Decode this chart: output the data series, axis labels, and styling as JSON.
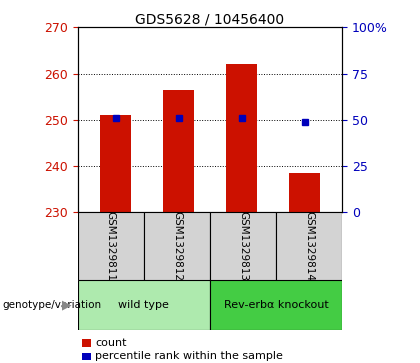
{
  "title": "GDS5628 / 10456400",
  "samples": [
    "GSM1329811",
    "GSM1329812",
    "GSM1329813",
    "GSM1329814"
  ],
  "count_values": [
    251.0,
    256.5,
    262.0,
    238.5
  ],
  "percentile_values": [
    51,
    51,
    51,
    49
  ],
  "ylim_left": [
    230,
    270
  ],
  "ylim_right": [
    0,
    100
  ],
  "yticks_left": [
    230,
    240,
    250,
    260,
    270
  ],
  "yticks_right": [
    0,
    25,
    50,
    75,
    100
  ],
  "groups": [
    {
      "label": "wild type",
      "indices": [
        0,
        1
      ],
      "color": "#aeeaae"
    },
    {
      "label": "Rev-erbα knockout",
      "indices": [
        2,
        3
      ],
      "color": "#44cc44"
    }
  ],
  "bar_color": "#cc1100",
  "dot_color": "#0000bb",
  "bar_width": 0.5,
  "background_color": "#ffffff",
  "plot_bg_color": "#ffffff",
  "label_color_left": "#cc1100",
  "label_color_right": "#0000bb",
  "genotype_label": "genotype/variation",
  "legend_count_label": "count",
  "legend_percentile_label": "percentile rank within the sample",
  "sample_bg_color": "#d3d3d3",
  "arrow_color": "#888888"
}
